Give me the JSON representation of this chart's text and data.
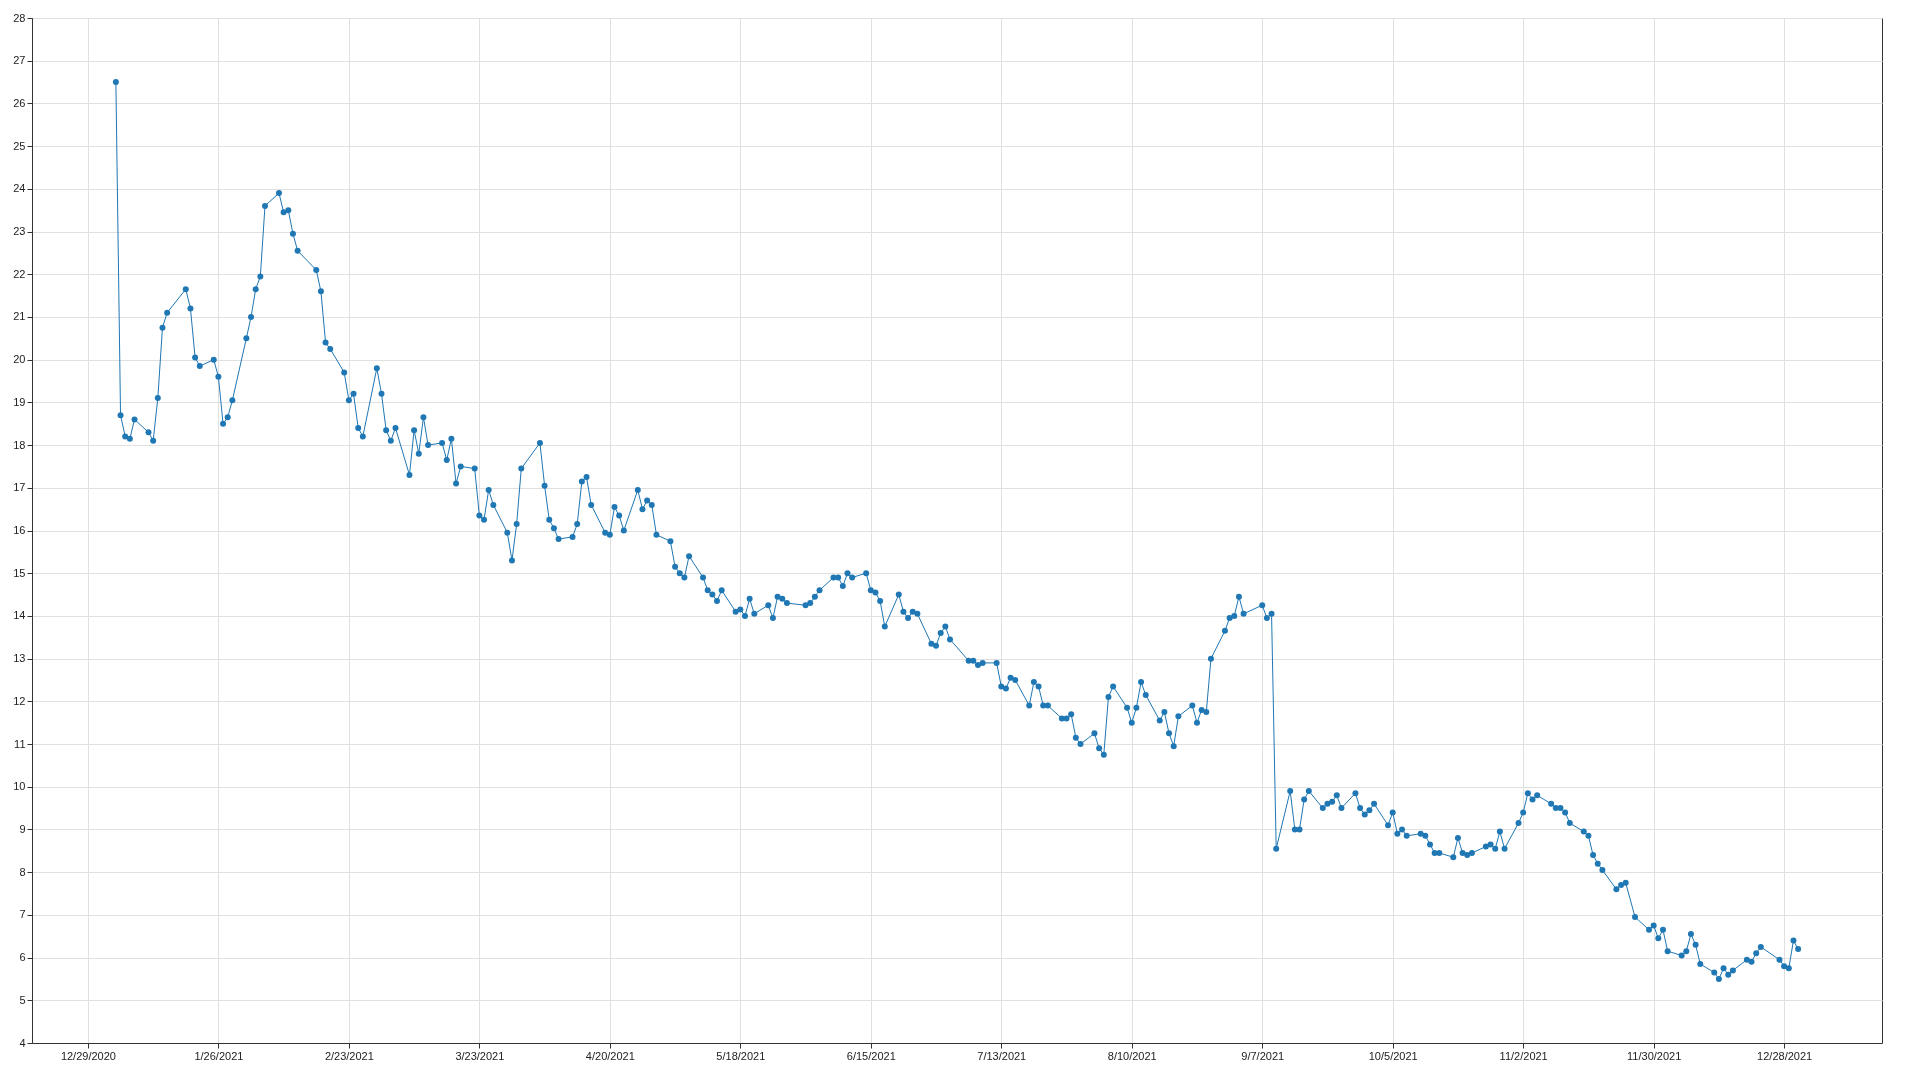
{
  "chart_data": {
    "type": "line",
    "xlim": [
      "2020-12-17",
      "2022-01-18"
    ],
    "ylim": [
      4,
      28
    ],
    "xticks": [
      {
        "value": "2020-12-29",
        "label": "12/29/2020"
      },
      {
        "value": "2021-01-26",
        "label": "1/26/2021"
      },
      {
        "value": "2021-02-23",
        "label": "2/23/2021"
      },
      {
        "value": "2021-03-23",
        "label": "3/23/2021"
      },
      {
        "value": "2021-04-20",
        "label": "4/20/2021"
      },
      {
        "value": "2021-05-18",
        "label": "5/18/2021"
      },
      {
        "value": "2021-06-15",
        "label": "6/15/2021"
      },
      {
        "value": "2021-07-13",
        "label": "7/13/2021"
      },
      {
        "value": "2021-08-10",
        "label": "8/10/2021"
      },
      {
        "value": "2021-09-07",
        "label": "9/7/2021"
      },
      {
        "value": "2021-10-05",
        "label": "10/5/2021"
      },
      {
        "value": "2021-11-02",
        "label": "11/2/2021"
      },
      {
        "value": "2021-11-30",
        "label": "11/30/2021"
      },
      {
        "value": "2021-12-28",
        "label": "12/28/2021"
      }
    ],
    "yticks": [
      4,
      5,
      6,
      7,
      8,
      9,
      10,
      11,
      12,
      13,
      14,
      15,
      16,
      17,
      18,
      19,
      20,
      21,
      22,
      23,
      24,
      25,
      26,
      27,
      28
    ],
    "grid": true,
    "marker": "circle",
    "line_style": "solid",
    "series": [
      {
        "color": "#1f77b4",
        "x": [
          "2021-01-04",
          "2021-01-05",
          "2021-01-06",
          "2021-01-07",
          "2021-01-08",
          "2021-01-11",
          "2021-01-12",
          "2021-01-13",
          "2021-01-14",
          "2021-01-15",
          "2021-01-19",
          "2021-01-20",
          "2021-01-21",
          "2021-01-22",
          "2021-01-25",
          "2021-01-26",
          "2021-01-27",
          "2021-01-28",
          "2021-01-29",
          "2021-02-01",
          "2021-02-02",
          "2021-02-03",
          "2021-02-04",
          "2021-02-05",
          "2021-02-08",
          "2021-02-09",
          "2021-02-10",
          "2021-02-11",
          "2021-02-12",
          "2021-02-16",
          "2021-02-17",
          "2021-02-18",
          "2021-02-19",
          "2021-02-22",
          "2021-02-23",
          "2021-02-24",
          "2021-02-25",
          "2021-02-26",
          "2021-03-01",
          "2021-03-02",
          "2021-03-03",
          "2021-03-04",
          "2021-03-05",
          "2021-03-08",
          "2021-03-09",
          "2021-03-10",
          "2021-03-11",
          "2021-03-12",
          "2021-03-15",
          "2021-03-16",
          "2021-03-17",
          "2021-03-18",
          "2021-03-19",
          "2021-03-22",
          "2021-03-23",
          "2021-03-24",
          "2021-03-25",
          "2021-03-26",
          "2021-03-29",
          "2021-03-30",
          "2021-03-31",
          "2021-04-01",
          "2021-04-05",
          "2021-04-06",
          "2021-04-07",
          "2021-04-08",
          "2021-04-09",
          "2021-04-12",
          "2021-04-13",
          "2021-04-14",
          "2021-04-15",
          "2021-04-16",
          "2021-04-19",
          "2021-04-20",
          "2021-04-21",
          "2021-04-22",
          "2021-04-23",
          "2021-04-26",
          "2021-04-27",
          "2021-04-28",
          "2021-04-29",
          "2021-04-30",
          "2021-05-03",
          "2021-05-04",
          "2021-05-05",
          "2021-05-06",
          "2021-05-07",
          "2021-05-10",
          "2021-05-11",
          "2021-05-12",
          "2021-05-13",
          "2021-05-14",
          "2021-05-17",
          "2021-05-18",
          "2021-05-19",
          "2021-05-20",
          "2021-05-21",
          "2021-05-24",
          "2021-05-25",
          "2021-05-26",
          "2021-05-27",
          "2021-05-28",
          "2021-06-01",
          "2021-06-02",
          "2021-06-03",
          "2021-06-04",
          "2021-06-07",
          "2021-06-08",
          "2021-06-09",
          "2021-06-10",
          "2021-06-11",
          "2021-06-14",
          "2021-06-15",
          "2021-06-16",
          "2021-06-17",
          "2021-06-18",
          "2021-06-21",
          "2021-06-22",
          "2021-06-23",
          "2021-06-24",
          "2021-06-25",
          "2021-06-28",
          "2021-06-29",
          "2021-06-30",
          "2021-07-01",
          "2021-07-02",
          "2021-07-06",
          "2021-07-07",
          "2021-07-08",
          "2021-07-09",
          "2021-07-12",
          "2021-07-13",
          "2021-07-14",
          "2021-07-15",
          "2021-07-16",
          "2021-07-19",
          "2021-07-20",
          "2021-07-21",
          "2021-07-22",
          "2021-07-23",
          "2021-07-26",
          "2021-07-27",
          "2021-07-28",
          "2021-07-29",
          "2021-07-30",
          "2021-08-02",
          "2021-08-03",
          "2021-08-04",
          "2021-08-05",
          "2021-08-06",
          "2021-08-09",
          "2021-08-10",
          "2021-08-11",
          "2021-08-12",
          "2021-08-13",
          "2021-08-16",
          "2021-08-17",
          "2021-08-18",
          "2021-08-19",
          "2021-08-20",
          "2021-08-23",
          "2021-08-24",
          "2021-08-25",
          "2021-08-26",
          "2021-08-27",
          "2021-08-30",
          "2021-08-31",
          "2021-09-01",
          "2021-09-02",
          "2021-09-03",
          "2021-09-07",
          "2021-09-08",
          "2021-09-09",
          "2021-09-10",
          "2021-09-13",
          "2021-09-14",
          "2021-09-15",
          "2021-09-16",
          "2021-09-17",
          "2021-09-20",
          "2021-09-21",
          "2021-09-22",
          "2021-09-23",
          "2021-09-24",
          "2021-09-27",
          "2021-09-28",
          "2021-09-29",
          "2021-09-30",
          "2021-10-01",
          "2021-10-04",
          "2021-10-05",
          "2021-10-06",
          "2021-10-07",
          "2021-10-08",
          "2021-10-11",
          "2021-10-12",
          "2021-10-13",
          "2021-10-14",
          "2021-10-15",
          "2021-10-18",
          "2021-10-19",
          "2021-10-20",
          "2021-10-21",
          "2021-10-22",
          "2021-10-25",
          "2021-10-26",
          "2021-10-27",
          "2021-10-28",
          "2021-10-29",
          "2021-11-01",
          "2021-11-02",
          "2021-11-03",
          "2021-11-04",
          "2021-11-05",
          "2021-11-08",
          "2021-11-09",
          "2021-11-10",
          "2021-11-11",
          "2021-11-12",
          "2021-11-15",
          "2021-11-16",
          "2021-11-17",
          "2021-11-18",
          "2021-11-19",
          "2021-11-22",
          "2021-11-23",
          "2021-11-24",
          "2021-11-26",
          "2021-11-29",
          "2021-11-30",
          "2021-12-01",
          "2021-12-02",
          "2021-12-03",
          "2021-12-06",
          "2021-12-07",
          "2021-12-08",
          "2021-12-09",
          "2021-12-10",
          "2021-12-13",
          "2021-12-14",
          "2021-12-15",
          "2021-12-16",
          "2021-12-17",
          "2021-12-20",
          "2021-12-21",
          "2021-12-22",
          "2021-12-23",
          "2021-12-27",
          "2021-12-28",
          "2021-12-29",
          "2021-12-30",
          "2021-12-31"
        ],
        "values": [
          26.5,
          18.7,
          18.2,
          18.15,
          18.6,
          18.3,
          18.1,
          19.1,
          20.75,
          21.1,
          21.65,
          21.2,
          20.05,
          19.85,
          20.0,
          19.6,
          18.5,
          18.65,
          19.05,
          20.5,
          21.0,
          21.65,
          21.95,
          23.6,
          23.9,
          23.45,
          23.5,
          22.95,
          22.55,
          22.1,
          21.6,
          20.4,
          20.25,
          19.7,
          19.05,
          19.2,
          18.4,
          18.2,
          19.8,
          19.2,
          18.35,
          18.1,
          18.4,
          17.3,
          18.35,
          17.8,
          18.65,
          18.0,
          18.05,
          17.65,
          18.15,
          17.1,
          17.5,
          17.45,
          16.35,
          16.25,
          16.95,
          16.6,
          15.95,
          15.3,
          16.15,
          17.45,
          18.05,
          17.05,
          16.25,
          16.05,
          15.8,
          15.85,
          16.15,
          17.15,
          17.25,
          16.6,
          15.95,
          15.9,
          16.55,
          16.35,
          16.0,
          16.95,
          16.5,
          16.7,
          16.6,
          15.9,
          15.75,
          15.15,
          15.0,
          14.9,
          15.4,
          14.9,
          14.6,
          14.5,
          14.35,
          14.6,
          14.1,
          14.15,
          14.0,
          14.4,
          14.05,
          14.25,
          13.95,
          14.45,
          14.4,
          14.3,
          14.25,
          14.3,
          14.45,
          14.6,
          14.9,
          14.9,
          14.7,
          15.0,
          14.9,
          15.0,
          14.6,
          14.55,
          14.35,
          13.75,
          14.5,
          14.1,
          13.95,
          14.1,
          14.05,
          13.35,
          13.3,
          13.6,
          13.75,
          13.45,
          12.95,
          12.95,
          12.85,
          12.9,
          12.9,
          12.35,
          12.3,
          12.55,
          12.5,
          11.9,
          12.45,
          12.35,
          11.9,
          11.9,
          11.6,
          11.6,
          11.7,
          11.15,
          11.0,
          11.25,
          10.9,
          10.75,
          12.1,
          12.35,
          11.85,
          11.5,
          11.85,
          12.45,
          12.15,
          11.55,
          11.75,
          11.25,
          10.95,
          11.65,
          11.9,
          11.5,
          11.8,
          11.75,
          13.0,
          13.65,
          13.95,
          14.0,
          14.45,
          14.05,
          14.25,
          13.95,
          14.05,
          8.55,
          9.9,
          9.0,
          9.0,
          9.7,
          9.9,
          9.5,
          9.6,
          9.65,
          9.8,
          9.5,
          9.85,
          9.5,
          9.35,
          9.45,
          9.6,
          9.1,
          9.4,
          8.9,
          9.0,
          8.85,
          8.9,
          8.85,
          8.65,
          8.45,
          8.45,
          8.35,
          8.8,
          8.45,
          8.4,
          8.45,
          8.6,
          8.65,
          8.55,
          8.95,
          8.55,
          9.15,
          9.4,
          9.85,
          9.7,
          9.8,
          9.6,
          9.5,
          9.5,
          9.4,
          9.15,
          8.95,
          8.85,
          8.4,
          8.2,
          8.05,
          7.6,
          7.7,
          7.75,
          6.95,
          6.65,
          6.75,
          6.45,
          6.65,
          6.15,
          6.05,
          6.15,
          6.55,
          6.3,
          5.85,
          5.65,
          5.5,
          5.75,
          5.6,
          5.7,
          5.95,
          5.9,
          6.1,
          6.25,
          5.95,
          5.8,
          5.75,
          6.4,
          6.2
        ]
      }
    ]
  }
}
